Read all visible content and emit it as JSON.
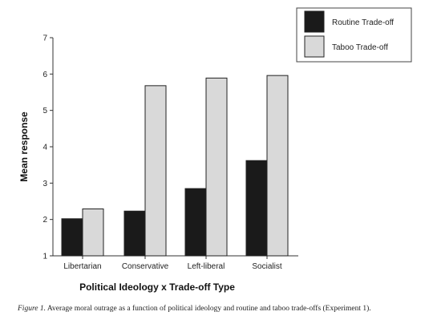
{
  "chart_data": {
    "type": "bar",
    "title": "",
    "xlabel": "Political Ideology x Trade-off Type",
    "ylabel": "Mean response",
    "ylim": [
      1,
      7
    ],
    "yticks": [
      "1",
      "2",
      "3",
      "4",
      "5",
      "6",
      "7"
    ],
    "categories": [
      "Libertarian",
      "Conservative",
      "Left-liberal",
      "Socialist"
    ],
    "series": [
      {
        "name": "Routine Trade-off",
        "color": "#1a1a1a",
        "values": [
          2.02,
          2.23,
          2.85,
          3.62
        ]
      },
      {
        "name": "Taboo Trade-off",
        "color": "#d9d9d9",
        "values": [
          2.29,
          5.68,
          5.89,
          5.96
        ]
      }
    ],
    "legend_position": "top-right",
    "grid": false
  },
  "caption": {
    "label": "Figure 1.",
    "text": "Average moral outrage as a function of political ideology and routine and taboo trade-offs (Experiment 1)."
  }
}
